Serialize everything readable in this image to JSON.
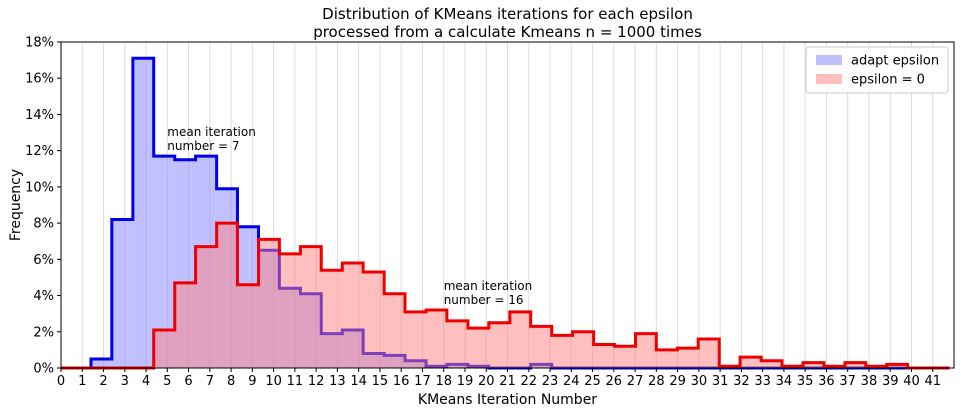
{
  "chart_data": {
    "type": "bar",
    "title": [
      "Distribution of KMeans iterations for each epsilon",
      "processed from a calculate Kmeans n = 1000 times"
    ],
    "xlabel": "KMeans Iteration Number",
    "ylabel": "Frequency",
    "xlim": [
      0,
      42
    ],
    "ylim": [
      0,
      0.18
    ],
    "x_ticks": [
      0,
      1,
      2,
      3,
      4,
      5,
      6,
      7,
      8,
      9,
      10,
      11,
      12,
      13,
      14,
      15,
      16,
      17,
      18,
      19,
      20,
      21,
      22,
      23,
      24,
      25,
      26,
      27,
      28,
      29,
      30,
      31,
      32,
      33,
      34,
      35,
      36,
      37,
      38,
      39,
      40,
      41
    ],
    "y_ticks": [
      0,
      0.02,
      0.04,
      0.06,
      0.08,
      0.1,
      0.12,
      0.14,
      0.16,
      0.18
    ],
    "y_tick_labels": [
      "0%",
      "2%",
      "4%",
      "6%",
      "8%",
      "10%",
      "12%",
      "14%",
      "16%",
      "18%"
    ],
    "grid": "vertical",
    "legend_position": "top-right",
    "bin_edges": [
      1.41,
      2.39,
      3.38,
      4.36,
      5.35,
      6.33,
      7.32,
      8.3,
      9.29,
      10.27,
      11.26,
      12.24,
      13.23,
      14.21,
      15.2,
      16.18,
      17.17,
      18.15,
      19.14,
      20.12,
      21.11,
      22.09,
      23.08,
      24.06,
      25.05,
      26.03,
      27.02,
      28.0,
      28.99,
      29.97,
      30.96,
      31.94,
      32.93,
      33.91,
      34.9,
      35.88,
      36.87,
      37.85,
      38.84,
      39.82,
      40.81,
      41.79
    ],
    "series": [
      {
        "name": "adapt epsilon",
        "color": "#0000ee",
        "fill": "#8c8cff",
        "fill_opacity": 0.55,
        "values": [
          0.005,
          0.082,
          0.171,
          0.117,
          0.115,
          0.117,
          0.099,
          0.078,
          0.065,
          0.044,
          0.041,
          0.019,
          0.021,
          0.008,
          0.007,
          0.004,
          0.001,
          0.002,
          0.001,
          0,
          0,
          0.002,
          0,
          0,
          0,
          0,
          0,
          0,
          0,
          0,
          0,
          0,
          0,
          0,
          0,
          0,
          0,
          0,
          0,
          0,
          0
        ]
      },
      {
        "name": "epsilon = 0",
        "color": "#ee0000",
        "fill": "#ff7f7f",
        "fill_opacity": 0.5,
        "values": [
          0,
          0,
          0,
          0.021,
          0.047,
          0.067,
          0.08,
          0.046,
          0.071,
          0.063,
          0.067,
          0.054,
          0.058,
          0.053,
          0.041,
          0.031,
          0.032,
          0.026,
          0.022,
          0.025,
          0.031,
          0.023,
          0.018,
          0.02,
          0.013,
          0.012,
          0.019,
          0.01,
          0.011,
          0.016,
          0.001,
          0.006,
          0.004,
          0.001,
          0.003,
          0.001,
          0.003,
          0.001,
          0.002,
          0,
          0
        ]
      }
    ],
    "annotations": [
      {
        "lines": [
          "mean iteration",
          "number = 7"
        ],
        "x": 5,
        "y": 0.128,
        "color": "#0000ee"
      },
      {
        "lines": [
          "mean iteration",
          "number = 16"
        ],
        "x": 18,
        "y": 0.043,
        "color": "#ee0000"
      }
    ]
  }
}
